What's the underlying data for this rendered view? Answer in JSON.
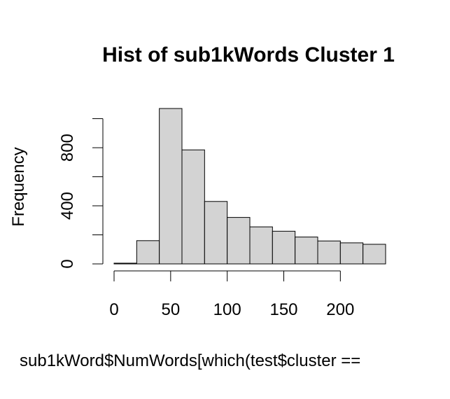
{
  "chart_data": {
    "type": "bar",
    "title": "Hist of sub1kWords Cluster 1",
    "xlabel": "sub1kWord$NumWords[which(test$cluster ==",
    "ylabel": "Frequency",
    "bin_edges": [
      0,
      20,
      40,
      60,
      80,
      100,
      120,
      140,
      160,
      180,
      200,
      220,
      240
    ],
    "values": [
      5,
      160,
      1070,
      785,
      430,
      320,
      255,
      225,
      185,
      158,
      145,
      135
    ],
    "xlim": [
      0,
      240
    ],
    "ylim": [
      0,
      1070
    ],
    "xticks": [
      0,
      50,
      100,
      150,
      200
    ],
    "yticks": [
      0,
      200,
      400,
      600,
      800,
      1000
    ],
    "ytick_labels": [
      "0",
      "",
      "400",
      "",
      "800",
      ""
    ],
    "bar_color": "#d3d3d3",
    "grid": false
  }
}
